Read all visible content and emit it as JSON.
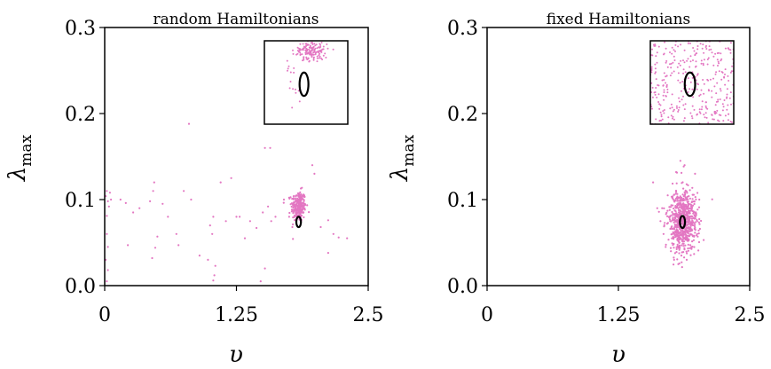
{
  "chart_data": [
    {
      "type": "scatter",
      "title": "random Hamiltonians",
      "xlabel": "υ",
      "ylabel": "λ",
      "ylabel_sub": "max",
      "xlim": [
        0,
        2.5
      ],
      "ylim": [
        0,
        0.3
      ],
      "xticks": [
        "0",
        "1.25",
        "2.5"
      ],
      "yticks": [
        "0.0",
        "0.1",
        "0.2",
        "0.3"
      ],
      "grid": false,
      "point_color": "#e377c2",
      "ellipse": {
        "center": [
          1.84,
          0.074
        ],
        "rx": 0.022,
        "ry": 0.006
      },
      "inset": {
        "xrange": [
          1.55,
          2.35
        ],
        "yrange": [
          0.188,
          0.284
        ],
        "ellipse": {
          "center": [
            1.93,
            0.234
          ],
          "rx": 0.085,
          "ry": 0.027
        }
      },
      "points": [
        [
          0.02,
          0.11
        ],
        [
          0.03,
          0.098
        ],
        [
          0.01,
          0.104
        ],
        [
          0.04,
          0.092
        ],
        [
          0.02,
          0.081
        ],
        [
          0.05,
          0.108
        ],
        [
          0.02,
          0.06
        ],
        [
          0.03,
          0.045
        ],
        [
          0.01,
          0.03
        ],
        [
          0.03,
          0.018
        ],
        [
          0.02,
          0.005
        ],
        [
          0.06,
          0.1
        ],
        [
          0.15,
          0.1
        ],
        [
          0.2,
          0.096
        ],
        [
          0.22,
          0.047
        ],
        [
          0.27,
          0.085
        ],
        [
          0.33,
          0.09
        ],
        [
          0.46,
          0.11
        ],
        [
          0.47,
          0.12
        ],
        [
          0.43,
          0.098
        ],
        [
          0.45,
          0.032
        ],
        [
          0.5,
          0.057
        ],
        [
          0.48,
          0.044
        ],
        [
          0.55,
          0.095
        ],
        [
          0.6,
          0.08
        ],
        [
          0.68,
          0.06
        ],
        [
          0.7,
          0.047
        ],
        [
          0.75,
          0.11
        ],
        [
          0.8,
          0.188
        ],
        [
          0.82,
          0.1
        ],
        [
          0.9,
          0.035
        ],
        [
          0.98,
          0.03
        ],
        [
          1.03,
          0.08
        ],
        [
          1.0,
          0.07
        ],
        [
          1.02,
          0.06
        ],
        [
          1.04,
          0.012
        ],
        [
          1.03,
          0.006
        ],
        [
          1.05,
          0.023
        ],
        [
          1.1,
          0.12
        ],
        [
          1.15,
          0.075
        ],
        [
          1.2,
          0.125
        ],
        [
          1.25,
          0.08
        ],
        [
          1.28,
          0.08
        ],
        [
          1.33,
          0.055
        ],
        [
          1.38,
          0.075
        ],
        [
          1.44,
          0.067
        ],
        [
          1.5,
          0.085
        ],
        [
          1.52,
          0.16
        ],
        [
          1.57,
          0.16
        ],
        [
          1.55,
          0.092
        ],
        [
          1.58,
          0.075
        ],
        [
          1.52,
          0.02
        ],
        [
          1.48,
          0.005
        ],
        [
          1.62,
          0.08
        ],
        [
          1.7,
          0.1
        ],
        [
          1.75,
          0.08
        ],
        [
          1.78,
          0.068
        ],
        [
          1.97,
          0.14
        ],
        [
          1.99,
          0.13
        ],
        [
          2.05,
          0.068
        ],
        [
          2.12,
          0.076
        ],
        [
          2.17,
          0.06
        ],
        [
          2.22,
          0.056
        ],
        [
          2.3,
          0.055
        ],
        [
          2.12,
          0.038
        ]
      ],
      "cluster": {
        "center": [
          1.84,
          0.092
        ],
        "sx": 0.035,
        "sy": 0.009,
        "count": 250
      }
    },
    {
      "type": "scatter",
      "title": "fixed Hamiltonians",
      "xlabel": "υ",
      "ylabel": "λ",
      "ylabel_sub": "max",
      "xlim": [
        0,
        2.5
      ],
      "ylim": [
        0,
        0.3
      ],
      "xticks": [
        "0",
        "1.25",
        "2.5"
      ],
      "yticks": [
        "0.0",
        "0.1",
        "0.2",
        "0.3"
      ],
      "grid": false,
      "point_color": "#e377c2",
      "ellipse": {
        "center": [
          1.86,
          0.074
        ],
        "rx": 0.024,
        "ry": 0.007
      },
      "inset": {
        "xrange": [
          1.55,
          2.35
        ],
        "yrange": [
          0.188,
          0.284
        ],
        "ellipse": {
          "center": [
            1.93,
            0.234
          ],
          "rx": 0.1,
          "ry": 0.027
        }
      },
      "points": [
        [
          1.58,
          0.12
        ],
        [
          1.62,
          0.09
        ],
        [
          1.65,
          0.075
        ],
        [
          1.68,
          0.06
        ],
        [
          1.7,
          0.045
        ],
        [
          1.72,
          0.105
        ],
        [
          1.75,
          0.04
        ],
        [
          1.78,
          0.03
        ],
        [
          1.82,
          0.025
        ],
        [
          1.85,
          0.035
        ],
        [
          1.9,
          0.03
        ],
        [
          1.95,
          0.045
        ],
        [
          2.0,
          0.06
        ],
        [
          2.02,
          0.1
        ],
        [
          1.98,
          0.13
        ],
        [
          1.88,
          0.14
        ],
        [
          1.84,
          0.145
        ],
        [
          1.8,
          0.132
        ]
      ],
      "cluster": {
        "center": [
          1.86,
          0.075
        ],
        "sx": 0.07,
        "sy": 0.018,
        "count": 700
      }
    }
  ]
}
